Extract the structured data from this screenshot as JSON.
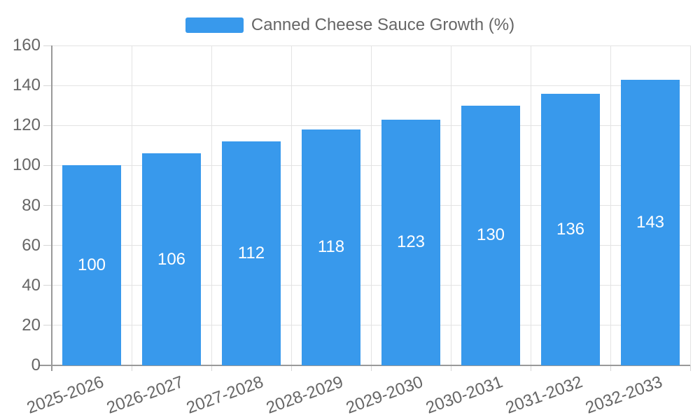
{
  "legend": {
    "label": "Canned Cheese Sauce Growth (%)"
  },
  "chart_data": {
    "type": "bar",
    "title": "Canned Cheese Sauce Growth (%)",
    "categories": [
      "2025-2026",
      "2026-2027",
      "2027-2028",
      "2028-2029",
      "2029-2030",
      "2030-2031",
      "2031-2032",
      "2032-2033"
    ],
    "values": [
      100,
      106,
      112,
      118,
      123,
      130,
      136,
      143
    ],
    "xlabel": "",
    "ylabel": "",
    "ylim": [
      0,
      160
    ],
    "yticks": [
      0,
      20,
      40,
      60,
      80,
      100,
      120,
      140,
      160
    ],
    "grid": true,
    "legend_position": "top",
    "value_labels": "inside-center",
    "x_label_rotation_deg": -20,
    "colors": {
      "bar": "#3899EC",
      "bar_label": "#FFFFFF",
      "grid": "#E3E3E3",
      "axis": "#999999",
      "tick": "#D6D6D6",
      "text": "#666666",
      "background": "#FFFFFF"
    }
  }
}
